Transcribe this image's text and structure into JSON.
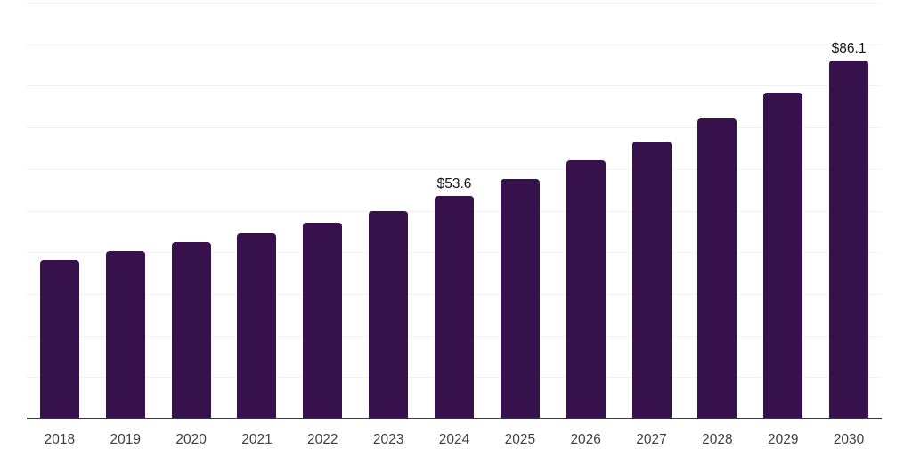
{
  "chart_data": {
    "type": "bar",
    "title": "",
    "xlabel": "",
    "ylabel": "",
    "categories": [
      "2018",
      "2019",
      "2020",
      "2021",
      "2022",
      "2023",
      "2024",
      "2025",
      "2026",
      "2027",
      "2028",
      "2029",
      "2030"
    ],
    "values": [
      38.1,
      40.2,
      42.5,
      44.6,
      47.1,
      49.9,
      53.6,
      57.5,
      62.0,
      66.5,
      72.2,
      78.4,
      86.1
    ],
    "value_labels": [
      "",
      "",
      "",
      "",
      "",
      "",
      "$53.6",
      "",
      "",
      "",
      "",
      "",
      "$86.1"
    ],
    "ylim": [
      0,
      100
    ],
    "grid_step": 10,
    "grid": "horizontal",
    "legend": "none",
    "colors": {
      "bar": "#36114c",
      "gridline": "#f2f2f3",
      "axis_line": "#3a3a3a",
      "tick_label": "#3f3f3f",
      "value_label": "#141414",
      "background": "#ffffff"
    }
  }
}
